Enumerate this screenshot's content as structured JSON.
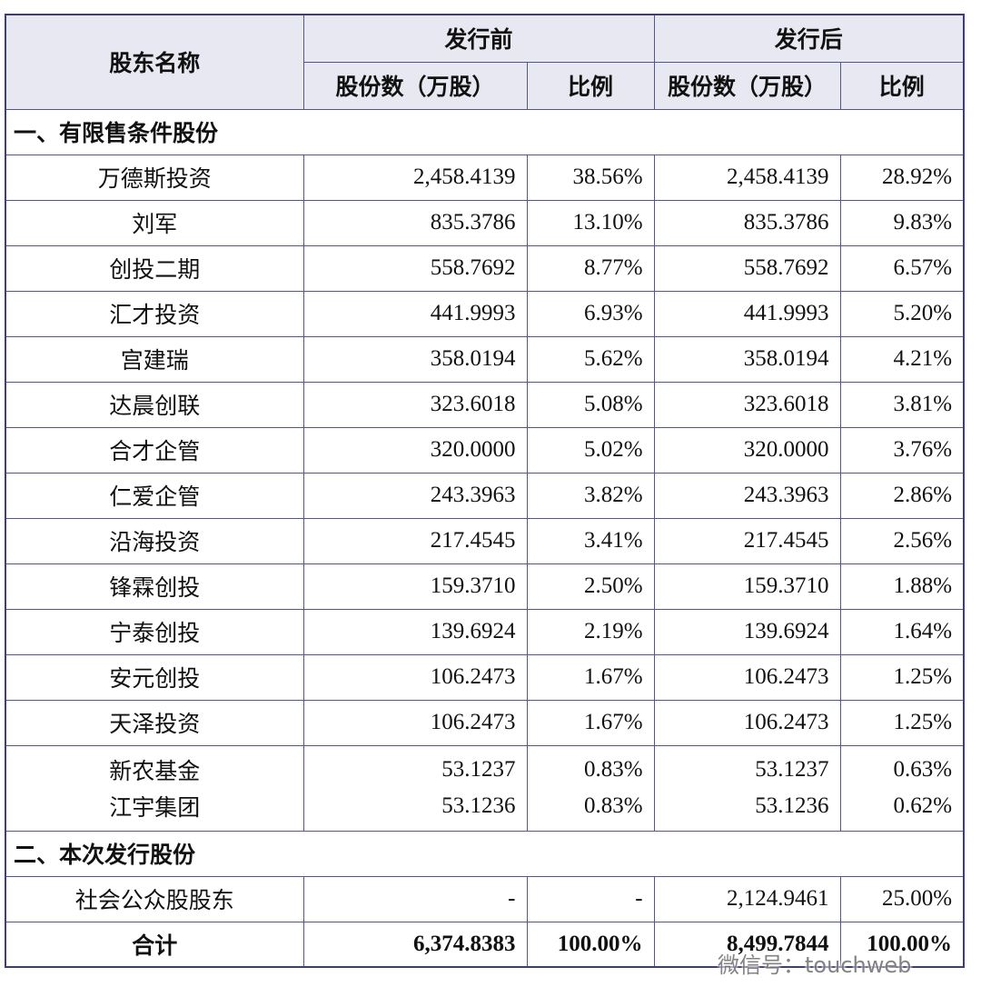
{
  "header": {
    "name_column": "股东名称",
    "before": "发行前",
    "after": "发行后",
    "before_columns": [
      "股份数（万股）",
      "比例"
    ],
    "after_columns": [
      "股份数（万股）",
      "比例"
    ]
  },
  "sections": [
    {
      "title": "一、有限售条件股份",
      "rows": [
        [
          "万德斯投资",
          "2,458.4139",
          "38.56%",
          "2,458.4139",
          "28.92%"
        ],
        [
          "刘军",
          "835.3786",
          "13.10%",
          "835.3786",
          "9.83%"
        ],
        [
          "创投二期",
          "558.7692",
          "8.77%",
          "558.7692",
          "6.57%"
        ],
        [
          "汇才投资",
          "441.9993",
          "6.93%",
          "441.9993",
          "5.20%"
        ],
        [
          "宫建瑞",
          "358.0194",
          "5.62%",
          "358.0194",
          "4.21%"
        ],
        [
          "达晨创联",
          "323.6018",
          "5.08%",
          "323.6018",
          "3.81%"
        ],
        [
          "合才企管",
          "320.0000",
          "5.02%",
          "320.0000",
          "3.76%"
        ],
        [
          "仁爱企管",
          "243.3963",
          "3.82%",
          "243.3963",
          "2.86%"
        ],
        [
          "沿海投资",
          "217.4545",
          "3.41%",
          "217.4545",
          "2.56%"
        ],
        [
          "锋霖创投",
          "159.3710",
          "2.50%",
          "159.3710",
          "1.88%"
        ],
        [
          "宁泰创投",
          "139.6924",
          "2.19%",
          "139.6924",
          "1.64%"
        ],
        [
          "安元创投",
          "106.2473",
          "1.67%",
          "106.2473",
          "1.25%"
        ],
        [
          "天泽投资",
          "106.2473",
          "1.67%",
          "106.2473",
          "1.25%"
        ],
        [
          [
            "新农基金",
            "53.1237",
            "0.83%",
            "53.1237",
            "0.63%"
          ],
          [
            "江宇集团",
            "53.1236",
            "0.83%",
            "53.1236",
            "0.62%"
          ]
        ]
      ]
    },
    {
      "title": "二、本次发行股份",
      "rows": [
        [
          "社会公众股股东",
          "-",
          "-",
          "2,124.9461",
          "25.00%"
        ]
      ]
    }
  ],
  "total": [
    "合计",
    "6,374.8383",
    "100.00%",
    "8,499.7844",
    "100.00%"
  ],
  "watermark": "微信号：touchweb"
}
